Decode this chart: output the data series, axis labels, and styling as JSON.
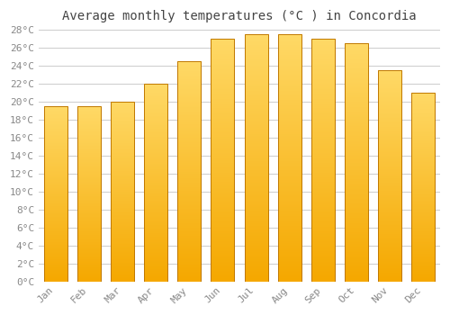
{
  "title": "Average monthly temperatures (°C ) in Concordia",
  "months": [
    "Jan",
    "Feb",
    "Mar",
    "Apr",
    "May",
    "Jun",
    "Jul",
    "Aug",
    "Sep",
    "Oct",
    "Nov",
    "Dec"
  ],
  "values": [
    19.5,
    19.5,
    20.0,
    22.0,
    24.5,
    27.0,
    27.5,
    27.5,
    27.0,
    26.5,
    23.5,
    21.0
  ],
  "bar_color_bottom": "#F5A800",
  "bar_color_top": "#FFD966",
  "bar_edge_color": "#C07800",
  "ylim": [
    0,
    28
  ],
  "ytick_step": 2,
  "background_color": "#FFFFFF",
  "grid_color": "#CCCCCC",
  "title_fontsize": 10,
  "tick_fontsize": 8,
  "font_family": "monospace"
}
